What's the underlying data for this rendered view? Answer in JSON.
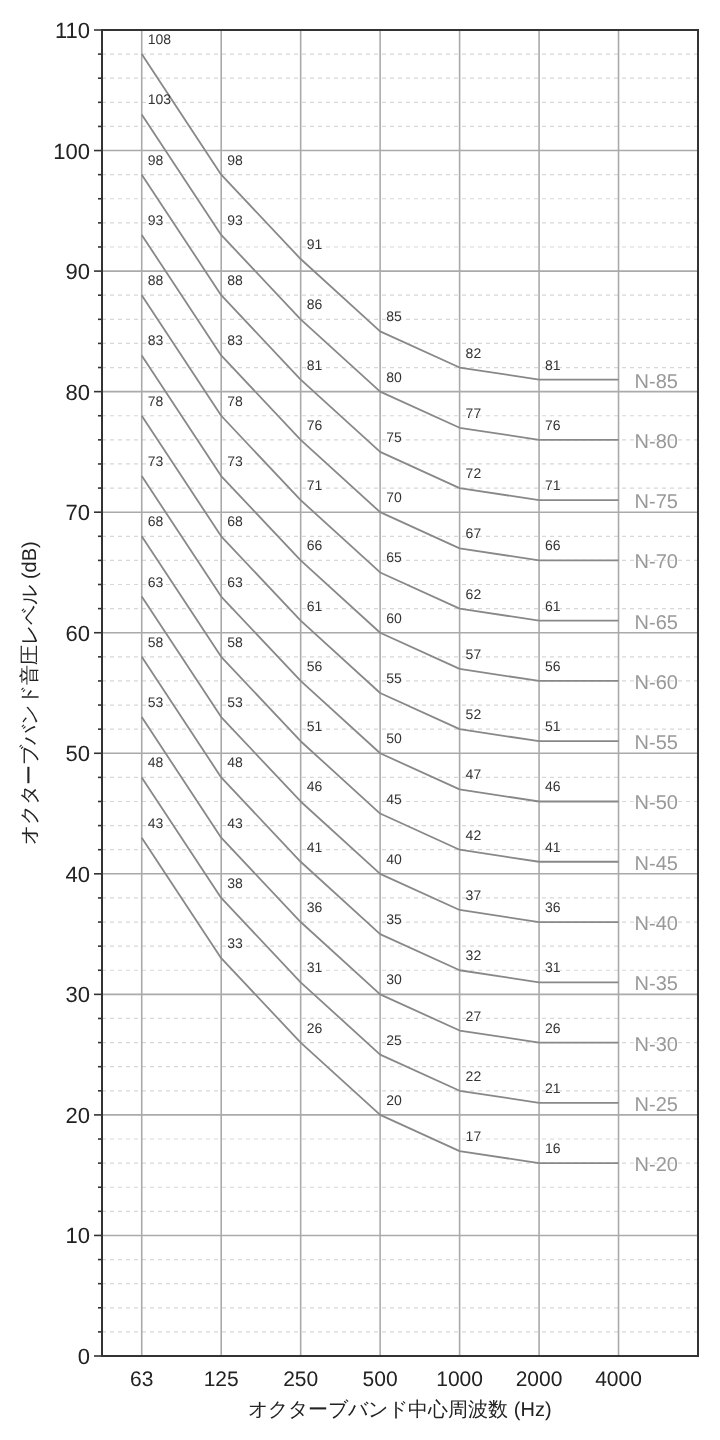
{
  "chart_data": {
    "type": "line",
    "xlabel": "オクターブバンド中心周波数 (Hz)",
    "ylabel": "オクターブバンド音圧レベル (dB)",
    "categories": [
      "63",
      "125",
      "250",
      "500",
      "1000",
      "2000",
      "4000"
    ],
    "ylim": [
      0,
      110
    ],
    "yticks": [
      0,
      {
        "value": 2,
        "label": null
      },
      {
        "value": 4,
        "label": null
      },
      {
        "value": 6,
        "label": null
      },
      {
        "value": 8,
        "label": null
      },
      10,
      {
        "value": 12,
        "label": null
      },
      {
        "value": 14,
        "label": null
      },
      {
        "value": 16,
        "label": null
      },
      {
        "value": 18,
        "label": null
      },
      20,
      {
        "value": 22,
        "label": null
      },
      {
        "value": 24,
        "label": null
      },
      {
        "value": 26,
        "label": null
      },
      {
        "value": 28,
        "label": null
      },
      30,
      {
        "value": 32,
        "label": null
      },
      {
        "value": 34,
        "label": null
      },
      {
        "value": 36,
        "label": null
      },
      {
        "value": 38,
        "label": null
      },
      40,
      {
        "value": 42,
        "label": null
      },
      {
        "value": 44,
        "label": null
      },
      {
        "value": 46,
        "label": null
      },
      {
        "value": 48,
        "label": null
      },
      50,
      {
        "value": 52,
        "label": null
      },
      {
        "value": 54,
        "label": null
      },
      {
        "value": 56,
        "label": null
      },
      {
        "value": 58,
        "label": null
      },
      60,
      {
        "value": 62,
        "label": null
      },
      {
        "value": 64,
        "label": null
      },
      {
        "value": 66,
        "label": null
      },
      {
        "value": 68,
        "label": null
      },
      70,
      {
        "value": 72,
        "label": null
      },
      {
        "value": 74,
        "label": null
      },
      {
        "value": 76,
        "label": null
      },
      {
        "value": 78,
        "label": null
      },
      80,
      {
        "value": 82,
        "label": null
      },
      {
        "value": 84,
        "label": null
      },
      {
        "value": 86,
        "label": null
      },
      {
        "value": 88,
        "label": null
      },
      90,
      {
        "value": 92,
        "label": null
      },
      {
        "value": 94,
        "label": null
      },
      {
        "value": 96,
        "label": null
      },
      {
        "value": 98,
        "label": null
      },
      100,
      {
        "value": 102,
        "label": null
      },
      {
        "value": 104,
        "label": null
      },
      {
        "value": 106,
        "label": null
      },
      {
        "value": 108,
        "label": null
      },
      110
    ],
    "grid": true,
    "series": [
      {
        "name": "N-85",
        "color": "#888888",
        "values": [
          108,
          98,
          91,
          85,
          82,
          81,
          81
        ],
        "value_labels": [
          "108",
          "98",
          "91",
          "85",
          "82",
          "81",
          null
        ]
      },
      {
        "name": "N-80",
        "color": "#888888",
        "values": [
          103,
          93,
          86,
          80,
          77,
          76,
          76
        ],
        "value_labels": [
          "103",
          "93",
          "86",
          "80",
          "77",
          "76",
          null
        ]
      },
      {
        "name": "N-75",
        "color": "#888888",
        "values": [
          98,
          88,
          81,
          75,
          72,
          71,
          71
        ],
        "value_labels": [
          "98",
          "88",
          "81",
          "75",
          "72",
          "71",
          null
        ]
      },
      {
        "name": "N-70",
        "color": "#888888",
        "values": [
          93,
          83,
          76,
          70,
          67,
          66,
          66
        ],
        "value_labels": [
          "93",
          "83",
          "76",
          "70",
          "67",
          "66",
          null
        ]
      },
      {
        "name": "N-65",
        "color": "#888888",
        "values": [
          88,
          78,
          71,
          65,
          62,
          61,
          61
        ],
        "value_labels": [
          "88",
          "78",
          "71",
          "65",
          "62",
          "61",
          null
        ]
      },
      {
        "name": "N-60",
        "color": "#888888",
        "values": [
          83,
          73,
          66,
          60,
          57,
          56,
          56
        ],
        "value_labels": [
          "83",
          "73",
          "66",
          "60",
          "57",
          "56",
          null
        ]
      },
      {
        "name": "N-55",
        "color": "#888888",
        "values": [
          78,
          68,
          61,
          55,
          52,
          51,
          51
        ],
        "value_labels": [
          "78",
          "68",
          "61",
          "55",
          "52",
          "51",
          null
        ]
      },
      {
        "name": "N-50",
        "color": "#888888",
        "values": [
          73,
          63,
          56,
          50,
          47,
          46,
          46
        ],
        "value_labels": [
          "73",
          "63",
          "56",
          "50",
          "47",
          "46",
          null
        ]
      },
      {
        "name": "N-45",
        "color": "#888888",
        "values": [
          68,
          58,
          51,
          45,
          42,
          41,
          41
        ],
        "value_labels": [
          "68",
          "58",
          "51",
          "45",
          "42",
          "41",
          null
        ]
      },
      {
        "name": "N-40",
        "color": "#888888",
        "values": [
          63,
          53,
          46,
          40,
          37,
          36,
          36
        ],
        "value_labels": [
          "63",
          "53",
          "46",
          "40",
          "37",
          "36",
          null
        ]
      },
      {
        "name": "N-35",
        "color": "#888888",
        "values": [
          58,
          48,
          41,
          35,
          32,
          31,
          31
        ],
        "value_labels": [
          "58",
          "48",
          "41",
          "35",
          "32",
          "31",
          null
        ]
      },
      {
        "name": "N-30",
        "color": "#888888",
        "values": [
          53,
          43,
          36,
          30,
          27,
          26,
          26
        ],
        "value_labels": [
          "53",
          "43",
          "36",
          "30",
          "27",
          "26",
          null
        ]
      },
      {
        "name": "N-25",
        "color": "#888888",
        "values": [
          48,
          38,
          31,
          25,
          22,
          21,
          21
        ],
        "value_labels": [
          "48",
          "38",
          "31",
          "25",
          "22",
          "21",
          null
        ]
      },
      {
        "name": "N-20",
        "color": "#888888",
        "values": [
          43,
          33,
          26,
          20,
          17,
          16,
          16
        ],
        "value_labels": [
          "43",
          "33",
          "26",
          "20",
          "17",
          "16",
          null
        ]
      }
    ]
  }
}
